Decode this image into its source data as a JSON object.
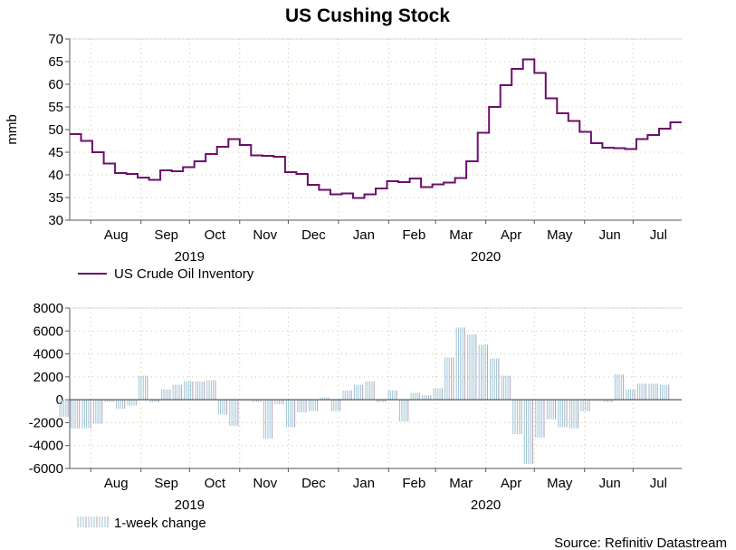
{
  "title": "US Cushing Stock",
  "source": "Source: Refinitiv Datastream",
  "colors": {
    "line": "#6b0f6b",
    "bar": "#9cc3d5",
    "bar_dark": "#b0a0b8",
    "grid": "#c8c8a0",
    "axis": "#555555"
  },
  "chart_data": [
    {
      "type": "line",
      "name": "US Crude Oil Inventory",
      "ylabel": "mmb",
      "ylim": [
        30,
        70
      ],
      "yticks": [
        30,
        35,
        40,
        45,
        50,
        55,
        60,
        65,
        70
      ],
      "x_start": "2019-07-19",
      "x_end": "2020-07-31",
      "months": [
        {
          "label": "Aug",
          "date": "2019-08-01"
        },
        {
          "label": "Sep",
          "date": "2019-09-01"
        },
        {
          "label": "Oct",
          "date": "2019-10-01"
        },
        {
          "label": "Nov",
          "date": "2019-11-01"
        },
        {
          "label": "Dec",
          "date": "2019-12-01"
        },
        {
          "label": "Jan",
          "date": "2020-01-01"
        },
        {
          "label": "Feb",
          "date": "2020-02-01"
        },
        {
          "label": "Mar",
          "date": "2020-03-01"
        },
        {
          "label": "Apr",
          "date": "2020-04-01"
        },
        {
          "label": "May",
          "date": "2020-05-01"
        },
        {
          "label": "Jun",
          "date": "2020-06-01"
        },
        {
          "label": "Jul",
          "date": "2020-07-01"
        }
      ],
      "years": [
        {
          "label": "2019",
          "date": "2019-10-01"
        },
        {
          "label": "2020",
          "date": "2020-04-01"
        }
      ],
      "x": [
        "2019-07-19",
        "2019-07-26",
        "2019-08-02",
        "2019-08-09",
        "2019-08-16",
        "2019-08-23",
        "2019-08-30",
        "2019-09-06",
        "2019-09-13",
        "2019-09-20",
        "2019-09-27",
        "2019-10-04",
        "2019-10-11",
        "2019-10-18",
        "2019-10-25",
        "2019-11-01",
        "2019-11-08",
        "2019-11-15",
        "2019-11-22",
        "2019-11-29",
        "2019-12-06",
        "2019-12-13",
        "2019-12-20",
        "2019-12-27",
        "2020-01-03",
        "2020-01-10",
        "2020-01-17",
        "2020-01-24",
        "2020-01-31",
        "2020-02-07",
        "2020-02-14",
        "2020-02-21",
        "2020-02-28",
        "2020-03-06",
        "2020-03-13",
        "2020-03-20",
        "2020-03-27",
        "2020-04-03",
        "2020-04-10",
        "2020-04-17",
        "2020-04-24",
        "2020-05-01",
        "2020-05-08",
        "2020-05-15",
        "2020-05-22",
        "2020-05-29",
        "2020-06-05",
        "2020-06-12",
        "2020-06-19",
        "2020-06-26",
        "2020-07-03",
        "2020-07-10",
        "2020-07-17",
        "2020-07-24",
        "2020-07-31"
      ],
      "values": [
        49.0,
        47.5,
        45.0,
        42.5,
        40.4,
        40.2,
        39.4,
        38.9,
        41.0,
        40.8,
        41.7,
        43.0,
        44.6,
        46.2,
        47.9,
        46.6,
        44.3,
        44.2,
        44.0,
        40.6,
        40.2,
        37.8,
        36.7,
        35.7,
        35.9,
        34.9,
        35.7,
        37.0,
        38.6,
        38.4,
        39.2,
        37.3,
        37.9,
        38.3,
        39.3,
        43.0,
        49.3,
        55.0,
        59.8,
        63.4,
        65.5,
        62.5,
        56.9,
        53.6,
        51.9,
        49.5,
        47.0,
        46.0,
        45.9,
        45.7,
        47.9,
        48.8,
        50.2,
        51.6,
        51.6
      ]
    },
    {
      "type": "bar",
      "name": "1-week change",
      "ylim": [
        -6000,
        8000
      ],
      "yticks": [
        -6000,
        -4000,
        -2000,
        0,
        2000,
        4000,
        6000,
        8000
      ],
      "values": [
        -1500,
        -2500,
        -2500,
        -2100,
        -200,
        -800,
        -500,
        2100,
        -200,
        900,
        1300,
        1600,
        1600,
        1700,
        -1300,
        -2300,
        -100,
        -200,
        -3400,
        -400,
        -2400,
        -1100,
        -1000,
        200,
        -1000,
        800,
        1300,
        1600,
        -200,
        800,
        -1900,
        600,
        400,
        1000,
        3700,
        6300,
        5700,
        4800,
        3600,
        2100,
        -3000,
        -5600,
        -3300,
        -1700,
        -2400,
        -2500,
        -1000,
        -100,
        -200,
        2200,
        900,
        1400,
        1400,
        1300,
        0
      ]
    }
  ],
  "legend_bottom": "1-week change"
}
